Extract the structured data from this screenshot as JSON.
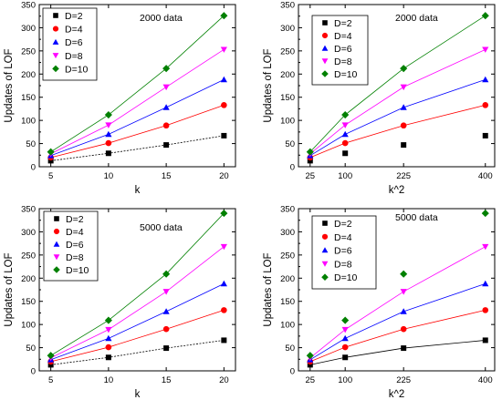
{
  "chart_data": [
    {
      "type": "line",
      "annotation": "2000 data",
      "xlabel": "k",
      "ylabel": "Updates of LOF",
      "x": [
        5,
        10,
        15,
        20
      ],
      "xticks": [
        "5",
        "10",
        "15",
        "20"
      ],
      "xlim": [
        4,
        21
      ],
      "ylim": [
        0,
        350
      ],
      "yticks": [
        0,
        50,
        100,
        150,
        200,
        250,
        300,
        350
      ],
      "legend": "top-left",
      "series": [
        {
          "name": "D=2",
          "color": "#000000",
          "marker": "square",
          "line": "dashed",
          "values": [
            13,
            29,
            47,
            67
          ]
        },
        {
          "name": "D=4",
          "color": "#ff0000",
          "marker": "circle",
          "line": "solid",
          "values": [
            20,
            51,
            89,
            133
          ]
        },
        {
          "name": "D=6",
          "color": "#0000ff",
          "marker": "triangle-up",
          "line": "solid",
          "values": [
            24,
            70,
            128,
            188
          ]
        },
        {
          "name": "D=8",
          "color": "#ff00ff",
          "marker": "triangle-down",
          "line": "solid",
          "values": [
            28,
            90,
            172,
            253
          ]
        },
        {
          "name": "D=10",
          "color": "#008000",
          "marker": "diamond",
          "line": "solid",
          "values": [
            32,
            112,
            212,
            326
          ]
        }
      ]
    },
    {
      "type": "line",
      "annotation": "2000 data",
      "xlabel": "k^2",
      "ylabel": "Updates of LOF",
      "x": [
        25,
        100,
        225,
        400
      ],
      "xticks": [
        "25",
        "100",
        "225",
        "400"
      ],
      "xlim": [
        0,
        420
      ],
      "ylim": [
        0,
        350
      ],
      "yticks": [
        0,
        50,
        100,
        150,
        200,
        250,
        300,
        350
      ],
      "legend": "top-left",
      "series": [
        {
          "name": "D=2",
          "color": "#000000",
          "marker": "square",
          "line": "none",
          "values": [
            13,
            29,
            47,
            67
          ]
        },
        {
          "name": "D=4",
          "color": "#ff0000",
          "marker": "circle",
          "line": "solid",
          "values": [
            20,
            51,
            89,
            133
          ]
        },
        {
          "name": "D=6",
          "color": "#0000ff",
          "marker": "triangle-up",
          "line": "solid",
          "values": [
            24,
            70,
            128,
            188
          ]
        },
        {
          "name": "D=8",
          "color": "#ff00ff",
          "marker": "triangle-down",
          "line": "solid",
          "values": [
            28,
            90,
            172,
            253
          ]
        },
        {
          "name": "D=10",
          "color": "#008000",
          "marker": "diamond",
          "line": "solid",
          "values": [
            32,
            112,
            212,
            326
          ]
        }
      ]
    },
    {
      "type": "line",
      "annotation": "5000 data",
      "xlabel": "k",
      "ylabel": "Updates of LOF",
      "x": [
        5,
        10,
        15,
        20
      ],
      "xticks": [
        "5",
        "10",
        "15",
        "20"
      ],
      "xlim": [
        4,
        21
      ],
      "ylim": [
        0,
        350
      ],
      "yticks": [
        0,
        50,
        100,
        150,
        200,
        250,
        300,
        350
      ],
      "legend": "top-left",
      "series": [
        {
          "name": "D=2",
          "color": "#000000",
          "marker": "square",
          "line": "dashed",
          "values": [
            13,
            29,
            49,
            66
          ]
        },
        {
          "name": "D=4",
          "color": "#ff0000",
          "marker": "circle",
          "line": "solid",
          "values": [
            20,
            51,
            90,
            131
          ]
        },
        {
          "name": "D=6",
          "color": "#0000ff",
          "marker": "triangle-up",
          "line": "solid",
          "values": [
            24,
            70,
            128,
            188
          ]
        },
        {
          "name": "D=8",
          "color": "#ff00ff",
          "marker": "triangle-down",
          "line": "solid",
          "values": [
            28,
            89,
            171,
            268
          ]
        },
        {
          "name": "D=10",
          "color": "#008000",
          "marker": "diamond",
          "line": "solid",
          "values": [
            33,
            109,
            209,
            340
          ]
        }
      ]
    },
    {
      "type": "line",
      "annotation": "5000 data",
      "xlabel": "k^2",
      "ylabel": "Updates of LOF",
      "x": [
        25,
        100,
        225,
        400
      ],
      "xticks": [
        "25",
        "100",
        "225",
        "400"
      ],
      "xlim": [
        0,
        420
      ],
      "ylim": [
        0,
        350
      ],
      "yticks": [
        0,
        50,
        100,
        150,
        200,
        250,
        300,
        350
      ],
      "legend": "top-left",
      "series": [
        {
          "name": "D=2",
          "color": "#000000",
          "marker": "square",
          "line": "solid",
          "values": [
            13,
            29,
            49,
            66
          ]
        },
        {
          "name": "D=4",
          "color": "#ff0000",
          "marker": "circle",
          "line": "solid",
          "values": [
            20,
            51,
            90,
            131
          ]
        },
        {
          "name": "D=6",
          "color": "#0000ff",
          "marker": "triangle-up",
          "line": "solid",
          "values": [
            24,
            70,
            128,
            188
          ]
        },
        {
          "name": "D=8",
          "color": "#ff00ff",
          "marker": "triangle-down",
          "line": "solid",
          "values": [
            28,
            89,
            171,
            268
          ]
        },
        {
          "name": "D=10",
          "color": "#008000",
          "marker": "diamond",
          "line": "none",
          "values": [
            33,
            109,
            209,
            340
          ]
        }
      ]
    }
  ]
}
